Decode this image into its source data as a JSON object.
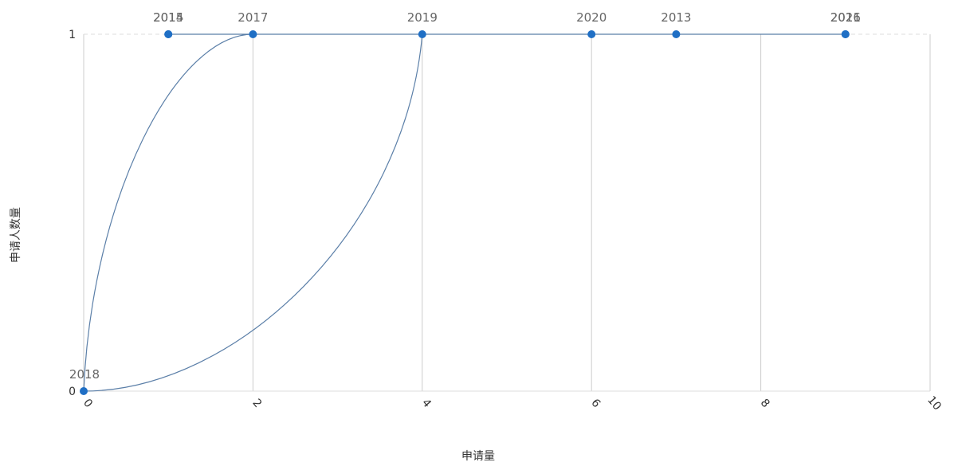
{
  "chart_data": {
    "type": "scatter",
    "xlabel": "申请量",
    "ylabel": "申请人数量",
    "xlim": [
      0,
      10
    ],
    "ylim": [
      0,
      1
    ],
    "x_ticks": [
      "0",
      "2",
      "4",
      "6",
      "8",
      "10"
    ],
    "y_ticks": [
      "0",
      "1"
    ],
    "vertical_grid": true,
    "colors": {
      "line": "#5b7fa8",
      "point": "#1f6fc5",
      "grid": "#cccccc"
    },
    "points": [
      {
        "x": 1,
        "y": 1,
        "label": "2014"
      },
      {
        "x": 1,
        "y": 1,
        "label": "2015"
      },
      {
        "x": 2,
        "y": 1,
        "label": "2017"
      },
      {
        "x": 4,
        "y": 1,
        "label": "2019"
      },
      {
        "x": 6,
        "y": 1,
        "label": "2020"
      },
      {
        "x": 7,
        "y": 1,
        "label": "2013"
      },
      {
        "x": 9,
        "y": 1,
        "label": "2016"
      },
      {
        "x": 9,
        "y": 1,
        "label": "2021"
      },
      {
        "x": 0,
        "y": 0,
        "label": "2018"
      }
    ],
    "path_order": [
      "2018",
      "2017",
      "2015",
      "2014",
      "2013",
      "2016",
      "2021",
      "2020",
      "2019",
      "2018"
    ]
  }
}
